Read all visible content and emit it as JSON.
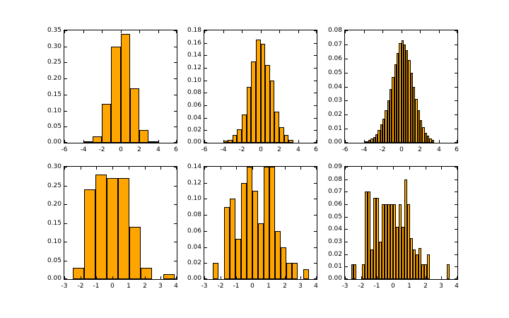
{
  "figure": {
    "background": "#ffffff",
    "bar_color": "#FFA500",
    "bar_edge_color": "#000000",
    "axis_color": "#000000"
  },
  "chart_data": [
    {
      "type": "histogram",
      "position": "top-left",
      "grid": false,
      "x_range": [
        -6,
        6
      ],
      "y_range": [
        0,
        0.35
      ],
      "x_tick_labels": [
        "-6",
        "-4",
        "-2",
        "0",
        "2",
        "4",
        "6"
      ],
      "y_tick_labels": [
        "0.00",
        "0.05",
        "0.10",
        "0.15",
        "0.20",
        "0.25",
        "0.30",
        "0.35"
      ],
      "bin_edges": [
        -4,
        -3,
        -2,
        -1,
        0,
        1,
        2,
        3,
        4
      ],
      "bar_heights": [
        0.005,
        0.02,
        0.12,
        0.3,
        0.34,
        0.17,
        0.04,
        0.005
      ]
    },
    {
      "type": "histogram",
      "position": "top-middle",
      "grid": false,
      "x_range": [
        -6,
        6
      ],
      "y_range": [
        0,
        0.18
      ],
      "x_tick_labels": [
        "-6",
        "-4",
        "-2",
        "0",
        "2",
        "4",
        "6"
      ],
      "y_tick_labels": [
        "0.00",
        "0.02",
        "0.04",
        "0.06",
        "0.08",
        "0.10",
        "0.12",
        "0.14",
        "0.16",
        "0.18"
      ],
      "bin_edges": [
        -4,
        -3.5,
        -3,
        -2.5,
        -2,
        -1.5,
        -1,
        -0.5,
        0,
        0.5,
        1,
        1.5,
        2,
        2.5,
        3,
        3.5
      ],
      "bar_heights": [
        0.003,
        0.005,
        0.012,
        0.022,
        0.045,
        0.09,
        0.13,
        0.165,
        0.158,
        0.125,
        0.1,
        0.05,
        0.025,
        0.012,
        0.005
      ]
    },
    {
      "type": "histogram",
      "position": "top-right",
      "grid": false,
      "x_range": [
        -6,
        6
      ],
      "y_range": [
        0,
        0.08
      ],
      "x_tick_labels": [
        "-6",
        "-4",
        "-2",
        "0",
        "2",
        "4",
        "6"
      ],
      "y_tick_labels": [
        "0.00",
        "0.01",
        "0.02",
        "0.03",
        "0.04",
        "0.05",
        "0.06",
        "0.07",
        "0.08"
      ],
      "bin_edges": [
        -4,
        -3.75,
        -3.5,
        -3.25,
        -3,
        -2.75,
        -2.5,
        -2.25,
        -2,
        -1.75,
        -1.5,
        -1.25,
        -1,
        -0.75,
        -0.5,
        -0.25,
        0,
        0.25,
        0.5,
        0.75,
        1,
        1.25,
        1.5,
        1.75,
        2,
        2.25,
        2.5,
        2.75,
        3,
        3.25,
        3.5
      ],
      "bar_heights": [
        0.001,
        0.001,
        0.002,
        0.003,
        0.004,
        0.006,
        0.009,
        0.013,
        0.017,
        0.023,
        0.03,
        0.038,
        0.047,
        0.056,
        0.064,
        0.071,
        0.073,
        0.07,
        0.066,
        0.059,
        0.05,
        0.04,
        0.031,
        0.023,
        0.016,
        0.011,
        0.007,
        0.005,
        0.003,
        0.002
      ]
    },
    {
      "type": "histogram",
      "position": "bottom-left",
      "grid": false,
      "x_range": [
        -3,
        4
      ],
      "y_range": [
        0,
        0.3
      ],
      "x_tick_labels": [
        "-3",
        "-2",
        "-1",
        "0",
        "1",
        "2",
        "3",
        "4"
      ],
      "y_tick_labels": [
        "0.00",
        "0.05",
        "0.10",
        "0.15",
        "0.20",
        "0.25",
        "0.30"
      ],
      "bin_edges": [
        -2.45,
        -1.75,
        -1.05,
        -0.35,
        0.35,
        1.05,
        1.75,
        2.45,
        3.15,
        3.85
      ],
      "bar_heights": [
        0.03,
        0.24,
        0.28,
        0.27,
        0.27,
        0.14,
        0.03,
        0,
        0.013
      ]
    },
    {
      "type": "histogram",
      "position": "bottom-middle",
      "grid": false,
      "x_range": [
        -3,
        4
      ],
      "y_range": [
        0,
        0.14
      ],
      "x_tick_labels": [
        "-3",
        "-2",
        "-1",
        "0",
        "1",
        "2",
        "3",
        "4"
      ],
      "y_tick_labels": [
        "0.00",
        "0.02",
        "0.04",
        "0.06",
        "0.08",
        "0.10",
        "0.12",
        "0.14"
      ],
      "bin_edges": [
        -2.45,
        -2.1,
        -1.75,
        -1.4,
        -1.05,
        -0.7,
        -0.35,
        0,
        0.35,
        0.7,
        1.05,
        1.4,
        1.75,
        2.1,
        2.45,
        2.8,
        3.15,
        3.5
      ],
      "bar_heights": [
        0.02,
        0,
        0.09,
        0.1,
        0.05,
        0.12,
        0.14,
        0.11,
        0.07,
        0.14,
        0.14,
        0.06,
        0.04,
        0.02,
        0.02,
        0,
        0.012
      ]
    },
    {
      "type": "histogram",
      "position": "bottom-right",
      "grid": false,
      "x_range": [
        -3,
        4
      ],
      "y_range": [
        0,
        0.09
      ],
      "x_tick_labels": [
        "-3",
        "-2",
        "-1",
        "0",
        "1",
        "2",
        "3",
        "4"
      ],
      "y_tick_labels": [
        "0.00",
        "0.01",
        "0.02",
        "0.03",
        "0.04",
        "0.05",
        "0.06",
        "0.07",
        "0.08",
        "0.09"
      ],
      "bin_edges": [
        -2.625,
        -2.45,
        -2.275,
        -2.1,
        -1.925,
        -1.75,
        -1.575,
        -1.4,
        -1.225,
        -1.05,
        -0.875,
        -0.7,
        -0.525,
        -0.35,
        -0.175,
        0,
        0.175,
        0.35,
        0.525,
        0.7,
        0.875,
        1.05,
        1.225,
        1.4,
        1.575,
        1.75,
        1.925,
        2.1,
        2.275,
        2.45,
        2.625,
        2.8,
        2.975,
        3.15,
        3.325,
        3.5
      ],
      "bar_heights": [
        0.012,
        0.012,
        0,
        0,
        0.012,
        0.07,
        0.07,
        0.024,
        0.065,
        0.065,
        0.03,
        0.06,
        0.06,
        0.06,
        0.06,
        0.06,
        0.042,
        0.06,
        0.042,
        0.08,
        0.06,
        0.033,
        0.024,
        0.02,
        0.025,
        0.012,
        0.012,
        0.02,
        0,
        0,
        0,
        0,
        0,
        0,
        0.012
      ]
    }
  ]
}
